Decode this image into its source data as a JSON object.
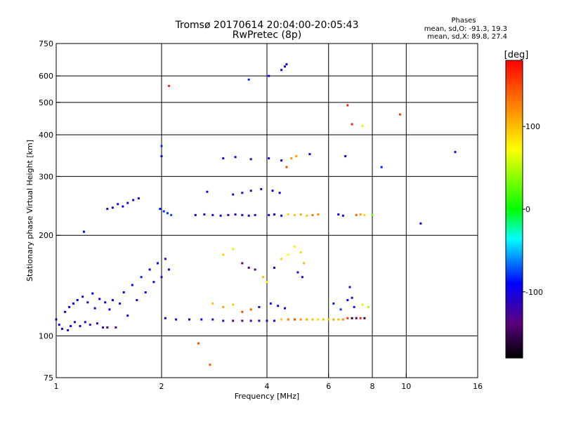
{
  "chart_data": {
    "type": "scatter",
    "title": "Tromsø 20170614 20:04:00-20:05:43",
    "subtitle": "RwPretec (8p)",
    "xlabel": "Frequency [MHz]",
    "ylabel": "Stationary phase Virtual Height [km]",
    "x_scale": "log",
    "y_scale": "log",
    "xlim": [
      1,
      16
    ],
    "ylim": [
      75,
      750
    ],
    "x_ticks": [
      1,
      2,
      4,
      6,
      8,
      10,
      16
    ],
    "x_tick_labels": [
      "1",
      "2",
      "4",
      "6",
      "8",
      "10",
      "16"
    ],
    "y_ticks": [
      75,
      100,
      200,
      300,
      400,
      500,
      600,
      750
    ],
    "y_tick_labels": [
      "75",
      "100",
      "200",
      "300",
      "400",
      "500",
      "600",
      "750"
    ],
    "grid": true,
    "stats": {
      "heading": "Phases",
      "line1": "mean, sd,O: -91.3, 19.3",
      "line2": "mean, sd,X:  89.8, 27.4"
    },
    "colorbar": {
      "label": "[deg]",
      "min": -180,
      "max": 180,
      "ticks": [
        100,
        0,
        -100
      ],
      "tick_labels": [
        "100",
        "0",
        "-100"
      ]
    },
    "points": [
      {
        "x": 1.0,
        "y": 112,
        "phase": -95
      },
      {
        "x": 1.02,
        "y": 108,
        "phase": -100
      },
      {
        "x": 1.04,
        "y": 105,
        "phase": -105
      },
      {
        "x": 1.06,
        "y": 118,
        "phase": -100
      },
      {
        "x": 1.08,
        "y": 104,
        "phase": -110
      },
      {
        "x": 1.09,
        "y": 122,
        "phase": -95
      },
      {
        "x": 1.1,
        "y": 107,
        "phase": -100
      },
      {
        "x": 1.12,
        "y": 125,
        "phase": -90
      },
      {
        "x": 1.13,
        "y": 110,
        "phase": -110
      },
      {
        "x": 1.15,
        "y": 128,
        "phase": -95
      },
      {
        "x": 1.17,
        "y": 107,
        "phase": -100
      },
      {
        "x": 1.19,
        "y": 131,
        "phase": -105
      },
      {
        "x": 1.21,
        "y": 110,
        "phase": -95
      },
      {
        "x": 1.23,
        "y": 126,
        "phase": -100
      },
      {
        "x": 1.25,
        "y": 108,
        "phase": -115
      },
      {
        "x": 1.27,
        "y": 134,
        "phase": -90
      },
      {
        "x": 1.29,
        "y": 121,
        "phase": -100
      },
      {
        "x": 1.31,
        "y": 109,
        "phase": -110
      },
      {
        "x": 1.33,
        "y": 129,
        "phase": -95
      },
      {
        "x": 1.36,
        "y": 106,
        "phase": -125
      },
      {
        "x": 1.38,
        "y": 126,
        "phase": -100
      },
      {
        "x": 1.4,
        "y": 106,
        "phase": -130
      },
      {
        "x": 1.42,
        "y": 120,
        "phase": -95
      },
      {
        "x": 1.45,
        "y": 128,
        "phase": -90
      },
      {
        "x": 1.48,
        "y": 106,
        "phase": -135
      },
      {
        "x": 1.52,
        "y": 125,
        "phase": -100
      },
      {
        "x": 1.56,
        "y": 135,
        "phase": -95
      },
      {
        "x": 1.6,
        "y": 115,
        "phase": -100
      },
      {
        "x": 1.65,
        "y": 142,
        "phase": -90
      },
      {
        "x": 1.7,
        "y": 128,
        "phase": -100
      },
      {
        "x": 1.75,
        "y": 150,
        "phase": -85
      },
      {
        "x": 1.8,
        "y": 135,
        "phase": -95
      },
      {
        "x": 1.85,
        "y": 158,
        "phase": -100
      },
      {
        "x": 1.9,
        "y": 145,
        "phase": -90
      },
      {
        "x": 1.95,
        "y": 165,
        "phase": -95
      },
      {
        "x": 2.0,
        "y": 150,
        "phase": -100
      },
      {
        "x": 2.05,
        "y": 170,
        "phase": -120
      },
      {
        "x": 2.1,
        "y": 158,
        "phase": -95
      },
      {
        "x": 1.4,
        "y": 240,
        "phase": -110
      },
      {
        "x": 1.45,
        "y": 242,
        "phase": -100
      },
      {
        "x": 1.5,
        "y": 248,
        "phase": -100
      },
      {
        "x": 1.55,
        "y": 244,
        "phase": -95
      },
      {
        "x": 1.6,
        "y": 250,
        "phase": -100
      },
      {
        "x": 1.66,
        "y": 255,
        "phase": -105
      },
      {
        "x": 1.72,
        "y": 258,
        "phase": -100
      },
      {
        "x": 1.98,
        "y": 240,
        "phase": -85
      },
      {
        "x": 2.03,
        "y": 236,
        "phase": -80
      },
      {
        "x": 2.08,
        "y": 233,
        "phase": -80
      },
      {
        "x": 2.13,
        "y": 230,
        "phase": -75
      },
      {
        "x": 2.5,
        "y": 230,
        "phase": -100
      },
      {
        "x": 2.65,
        "y": 231,
        "phase": -110
      },
      {
        "x": 2.8,
        "y": 230,
        "phase": -105
      },
      {
        "x": 2.95,
        "y": 229,
        "phase": -100
      },
      {
        "x": 3.1,
        "y": 230,
        "phase": -120
      },
      {
        "x": 3.25,
        "y": 231,
        "phase": -110
      },
      {
        "x": 3.4,
        "y": 230,
        "phase": -100
      },
      {
        "x": 3.55,
        "y": 229,
        "phase": -115
      },
      {
        "x": 3.7,
        "y": 230,
        "phase": -105
      },
      {
        "x": 4.05,
        "y": 230,
        "phase": -100
      },
      {
        "x": 4.2,
        "y": 231,
        "phase": -95
      },
      {
        "x": 4.4,
        "y": 229,
        "phase": -100
      },
      {
        "x": 4.6,
        "y": 231,
        "phase": 90
      },
      {
        "x": 4.8,
        "y": 230,
        "phase": 100
      },
      {
        "x": 5.0,
        "y": 231,
        "phase": 110
      },
      {
        "x": 5.2,
        "y": 229,
        "phase": 95
      },
      {
        "x": 5.4,
        "y": 230,
        "phase": 130
      },
      {
        "x": 5.6,
        "y": 231,
        "phase": 120
      },
      {
        "x": 6.4,
        "y": 231,
        "phase": -100
      },
      {
        "x": 6.6,
        "y": 229,
        "phase": -110
      },
      {
        "x": 7.2,
        "y": 230,
        "phase": 140
      },
      {
        "x": 7.4,
        "y": 231,
        "phase": 110
      },
      {
        "x": 7.6,
        "y": 230,
        "phase": 90
      },
      {
        "x": 8.0,
        "y": 230,
        "phase": 30
      },
      {
        "x": 2.7,
        "y": 270,
        "phase": -100
      },
      {
        "x": 3.2,
        "y": 265,
        "phase": -110
      },
      {
        "x": 3.4,
        "y": 268,
        "phase": -100
      },
      {
        "x": 3.6,
        "y": 272,
        "phase": -120
      },
      {
        "x": 3.85,
        "y": 275,
        "phase": -105
      },
      {
        "x": 4.15,
        "y": 272,
        "phase": -90
      },
      {
        "x": 4.35,
        "y": 268,
        "phase": -95
      },
      {
        "x": 3.0,
        "y": 340,
        "phase": -110
      },
      {
        "x": 3.25,
        "y": 343,
        "phase": -100
      },
      {
        "x": 3.6,
        "y": 338,
        "phase": -120
      },
      {
        "x": 4.05,
        "y": 340,
        "phase": -100
      },
      {
        "x": 4.4,
        "y": 335,
        "phase": -105
      },
      {
        "x": 4.55,
        "y": 320,
        "phase": 150
      },
      {
        "x": 4.7,
        "y": 340,
        "phase": 120
      },
      {
        "x": 4.85,
        "y": 345,
        "phase": 110
      },
      {
        "x": 5.3,
        "y": 350,
        "phase": -100
      },
      {
        "x": 6.7,
        "y": 345,
        "phase": -110
      },
      {
        "x": 8.5,
        "y": 320,
        "phase": -85
      },
      {
        "x": 13.8,
        "y": 355,
        "phase": -100
      },
      {
        "x": 2.0,
        "y": 345,
        "phase": -90
      },
      {
        "x": 2.0,
        "y": 370,
        "phase": -80
      },
      {
        "x": 2.1,
        "y": 560,
        "phase": 160
      },
      {
        "x": 3.55,
        "y": 585,
        "phase": -80
      },
      {
        "x": 4.05,
        "y": 600,
        "phase": -100
      },
      {
        "x": 4.4,
        "y": 625,
        "phase": -100
      },
      {
        "x": 4.5,
        "y": 640,
        "phase": -110
      },
      {
        "x": 4.55,
        "y": 650,
        "phase": -100
      },
      {
        "x": 6.8,
        "y": 490,
        "phase": 170
      },
      {
        "x": 7.0,
        "y": 430,
        "phase": 170
      },
      {
        "x": 7.5,
        "y": 425,
        "phase": 60
      },
      {
        "x": 9.6,
        "y": 460,
        "phase": 155
      },
      {
        "x": 11.0,
        "y": 217,
        "phase": -105
      },
      {
        "x": 2.55,
        "y": 95,
        "phase": 150
      },
      {
        "x": 2.75,
        "y": 82,
        "phase": 145
      },
      {
        "x": 1.2,
        "y": 205,
        "phase": -90
      },
      {
        "x": 3.0,
        "y": 175,
        "phase": 90
      },
      {
        "x": 3.2,
        "y": 182,
        "phase": 60
      },
      {
        "x": 3.4,
        "y": 165,
        "phase": -130
      },
      {
        "x": 3.55,
        "y": 160,
        "phase": -140
      },
      {
        "x": 3.7,
        "y": 158,
        "phase": -135
      },
      {
        "x": 3.9,
        "y": 150,
        "phase": 100
      },
      {
        "x": 4.0,
        "y": 145,
        "phase": 80
      },
      {
        "x": 4.2,
        "y": 160,
        "phase": -100
      },
      {
        "x": 4.4,
        "y": 170,
        "phase": 90
      },
      {
        "x": 4.6,
        "y": 175,
        "phase": 70
      },
      {
        "x": 4.8,
        "y": 185,
        "phase": 80
      },
      {
        "x": 5.0,
        "y": 178,
        "phase": 90
      },
      {
        "x": 5.1,
        "y": 165,
        "phase": 100
      },
      {
        "x": 4.9,
        "y": 155,
        "phase": -120
      },
      {
        "x": 5.05,
        "y": 150,
        "phase": -110
      },
      {
        "x": 2.8,
        "y": 125,
        "phase": 100
      },
      {
        "x": 3.0,
        "y": 122,
        "phase": 110
      },
      {
        "x": 3.2,
        "y": 124,
        "phase": 95
      },
      {
        "x": 3.4,
        "y": 118,
        "phase": 150
      },
      {
        "x": 3.6,
        "y": 120,
        "phase": 140
      },
      {
        "x": 3.8,
        "y": 122,
        "phase": -110
      },
      {
        "x": 4.1,
        "y": 125,
        "phase": -100
      },
      {
        "x": 4.3,
        "y": 123,
        "phase": -105
      },
      {
        "x": 4.5,
        "y": 121,
        "phase": -95
      },
      {
        "x": 6.2,
        "y": 125,
        "phase": -85
      },
      {
        "x": 6.5,
        "y": 120,
        "phase": -80
      },
      {
        "x": 6.8,
        "y": 128,
        "phase": -90
      },
      {
        "x": 7.1,
        "y": 122,
        "phase": -100
      },
      {
        "x": 7.5,
        "y": 124,
        "phase": 60
      },
      {
        "x": 7.8,
        "y": 122,
        "phase": 50
      },
      {
        "x": 6.9,
        "y": 140,
        "phase": -115
      },
      {
        "x": 7.0,
        "y": 130,
        "phase": -105
      },
      {
        "x": 2.05,
        "y": 113,
        "phase": -100
      },
      {
        "x": 2.2,
        "y": 112,
        "phase": -100
      },
      {
        "x": 2.4,
        "y": 112,
        "phase": -105
      },
      {
        "x": 2.6,
        "y": 112,
        "phase": -100
      },
      {
        "x": 2.8,
        "y": 112,
        "phase": -110
      },
      {
        "x": 3.0,
        "y": 111,
        "phase": -120
      },
      {
        "x": 3.2,
        "y": 111,
        "phase": -130
      },
      {
        "x": 3.4,
        "y": 111,
        "phase": -135
      },
      {
        "x": 3.6,
        "y": 111,
        "phase": -130
      },
      {
        "x": 3.8,
        "y": 111,
        "phase": -125
      },
      {
        "x": 4.0,
        "y": 111,
        "phase": -110
      },
      {
        "x": 4.2,
        "y": 111,
        "phase": -100
      },
      {
        "x": 4.4,
        "y": 112,
        "phase": 95
      },
      {
        "x": 4.6,
        "y": 112,
        "phase": 130
      },
      {
        "x": 4.8,
        "y": 112,
        "phase": 150
      },
      {
        "x": 5.0,
        "y": 112,
        "phase": 120
      },
      {
        "x": 5.2,
        "y": 112,
        "phase": 110
      },
      {
        "x": 5.4,
        "y": 112,
        "phase": 100
      },
      {
        "x": 5.6,
        "y": 112,
        "phase": 90
      },
      {
        "x": 5.8,
        "y": 112,
        "phase": 100
      },
      {
        "x": 6.0,
        "y": 112,
        "phase": 95
      },
      {
        "x": 6.2,
        "y": 112,
        "phase": 110
      },
      {
        "x": 6.4,
        "y": 112,
        "phase": 100
      },
      {
        "x": 6.6,
        "y": 112,
        "phase": 120
      },
      {
        "x": 6.8,
        "y": 113,
        "phase": 160
      },
      {
        "x": 7.0,
        "y": 113,
        "phase": -170
      },
      {
        "x": 7.2,
        "y": 113,
        "phase": -140
      },
      {
        "x": 7.4,
        "y": 113,
        "phase": 170
      },
      {
        "x": 7.6,
        "y": 113,
        "phase": -160
      }
    ]
  }
}
